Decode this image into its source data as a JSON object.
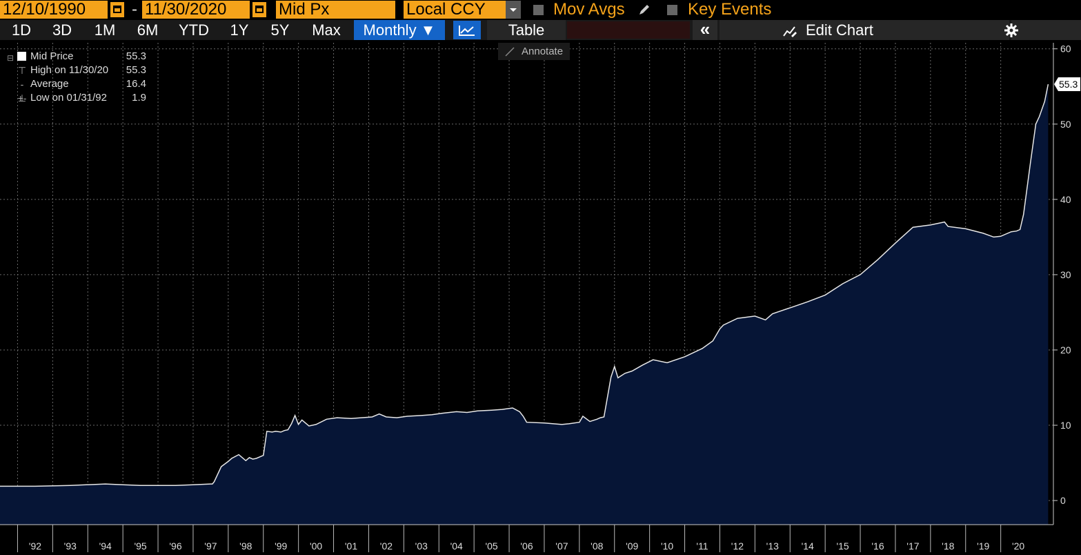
{
  "toolbar": {
    "start_date": "12/10/1990",
    "separator": "-",
    "end_date": "11/30/2020",
    "field": "Mid Px",
    "currency": "Local CCY",
    "mov_avgs_label": "Mov Avgs",
    "key_events_label": "Key Events"
  },
  "tabs": {
    "periods": [
      "1D",
      "3D",
      "1M",
      "6M",
      "YTD",
      "1Y",
      "5Y",
      "Max"
    ],
    "frequency": "Monthly ▼",
    "table_label": "Table",
    "collapse_label": "«",
    "edit_chart_label": "Edit Chart",
    "annotate_label": "Annotate"
  },
  "legend": {
    "items": [
      {
        "label": "Mid Price",
        "value": "55.3"
      },
      {
        "label": "High on 11/30/20",
        "value": "55.3"
      },
      {
        "label": "Average",
        "value": "16.4"
      },
      {
        "label": "Low on 01/31/92",
        "value": "1.9"
      }
    ]
  },
  "colors": {
    "accent": "#f5a31a",
    "selected_tab": "#1464c8",
    "area_fill": "#061536",
    "line": "#e8e8e8"
  },
  "chart_data": {
    "type": "area",
    "series": [
      {
        "name": "Mid Price",
        "x": [
          1991.0,
          1992.0,
          1993.0,
          1994.0,
          1994.5,
          1995.0,
          1995.5,
          1996.0,
          1996.5,
          1997.0,
          1997.05,
          1997.1,
          1997.3,
          1997.5,
          1997.6,
          1997.8,
          1998.0,
          1998.1,
          1998.2,
          1998.3,
          1998.5,
          1998.6,
          1998.75,
          1998.85,
          1999.0,
          1999.1,
          1999.2,
          1999.3,
          1999.4,
          1999.5,
          1999.6,
          1999.8,
          2000.0,
          2000.3,
          2000.6,
          2001.0,
          2001.3,
          2001.6,
          2001.8,
          2002.0,
          2002.3,
          2002.6,
          2003.0,
          2003.3,
          2003.6,
          2004.0,
          2004.3,
          2004.6,
          2005.0,
          2005.3,
          2005.6,
          2005.8,
          2005.9,
          2006.0,
          2006.5,
          2007.0,
          2007.2,
          2007.5,
          2007.6,
          2007.8,
          2008.0,
          2008.1,
          2008.2,
          2008.4,
          2008.5,
          2008.6,
          2008.8,
          2009.0,
          2009.3,
          2009.6,
          2010.0,
          2010.5,
          2011.0,
          2011.3,
          2011.5,
          2011.6,
          2012.0,
          2012.5,
          2012.8,
          2013.0,
          2013.5,
          2014.0,
          2014.5,
          2015.0,
          2015.5,
          2016.0,
          2016.5,
          2017.0,
          2017.5,
          2017.9,
          2018.0,
          2018.5,
          2019.0,
          2019.3,
          2019.5,
          2019.8,
          2019.95,
          2020.05,
          2020.15,
          2020.35,
          2020.5,
          2020.6,
          2020.75,
          2020.85
        ],
        "y": [
          1.9,
          1.9,
          2.0,
          2.2,
          2.1,
          2.0,
          2.0,
          2.0,
          2.1,
          2.2,
          2.2,
          2.5,
          4.5,
          5.2,
          5.6,
          6.1,
          5.3,
          5.7,
          5.5,
          5.6,
          6.0,
          9.2,
          9.1,
          9.2,
          9.1,
          9.3,
          9.4,
          10.2,
          11.3,
          10.1,
          10.7,
          9.9,
          10.1,
          10.8,
          11.0,
          10.9,
          11.0,
          11.1,
          11.5,
          11.1,
          11.0,
          11.2,
          11.3,
          11.4,
          11.6,
          11.8,
          11.7,
          11.9,
          12.0,
          12.1,
          12.3,
          11.8,
          11.2,
          10.4,
          10.3,
          10.1,
          10.2,
          10.4,
          11.2,
          10.5,
          10.8,
          11.0,
          11.1,
          16.4,
          17.8,
          16.3,
          16.9,
          17.2,
          18.0,
          18.7,
          18.3,
          19.1,
          20.2,
          21.2,
          22.8,
          23.3,
          24.2,
          24.5,
          24.0,
          24.8,
          25.6,
          26.4,
          27.3,
          28.8,
          30.0,
          32.0,
          34.2,
          36.3,
          36.6,
          37.0,
          36.4,
          36.1,
          35.5,
          35.0,
          35.1,
          35.7,
          35.8,
          36.0,
          38.0,
          45.0,
          50.0,
          51.0,
          53.0,
          55.3
        ]
      }
    ],
    "xticks": [
      "'92",
      "'93",
      "'94",
      "'95",
      "'96",
      "'97",
      "'98",
      "'99",
      "'00",
      "'01",
      "'02",
      "'03",
      "'04",
      "'05",
      "'06",
      "'07",
      "'08",
      "'09",
      "'10",
      "'11",
      "'12",
      "'13",
      "'14",
      "'15",
      "'16",
      "'17",
      "'18",
      "'19",
      "'20"
    ],
    "yticks": [
      0,
      10,
      20,
      30,
      40,
      50,
      60
    ],
    "ylim": [
      -3.2,
      60.8
    ],
    "xlim": [
      1991.0,
      2021.0
    ],
    "last_value_label": "55.3",
    "grid": true,
    "y_axis_position": "right"
  }
}
